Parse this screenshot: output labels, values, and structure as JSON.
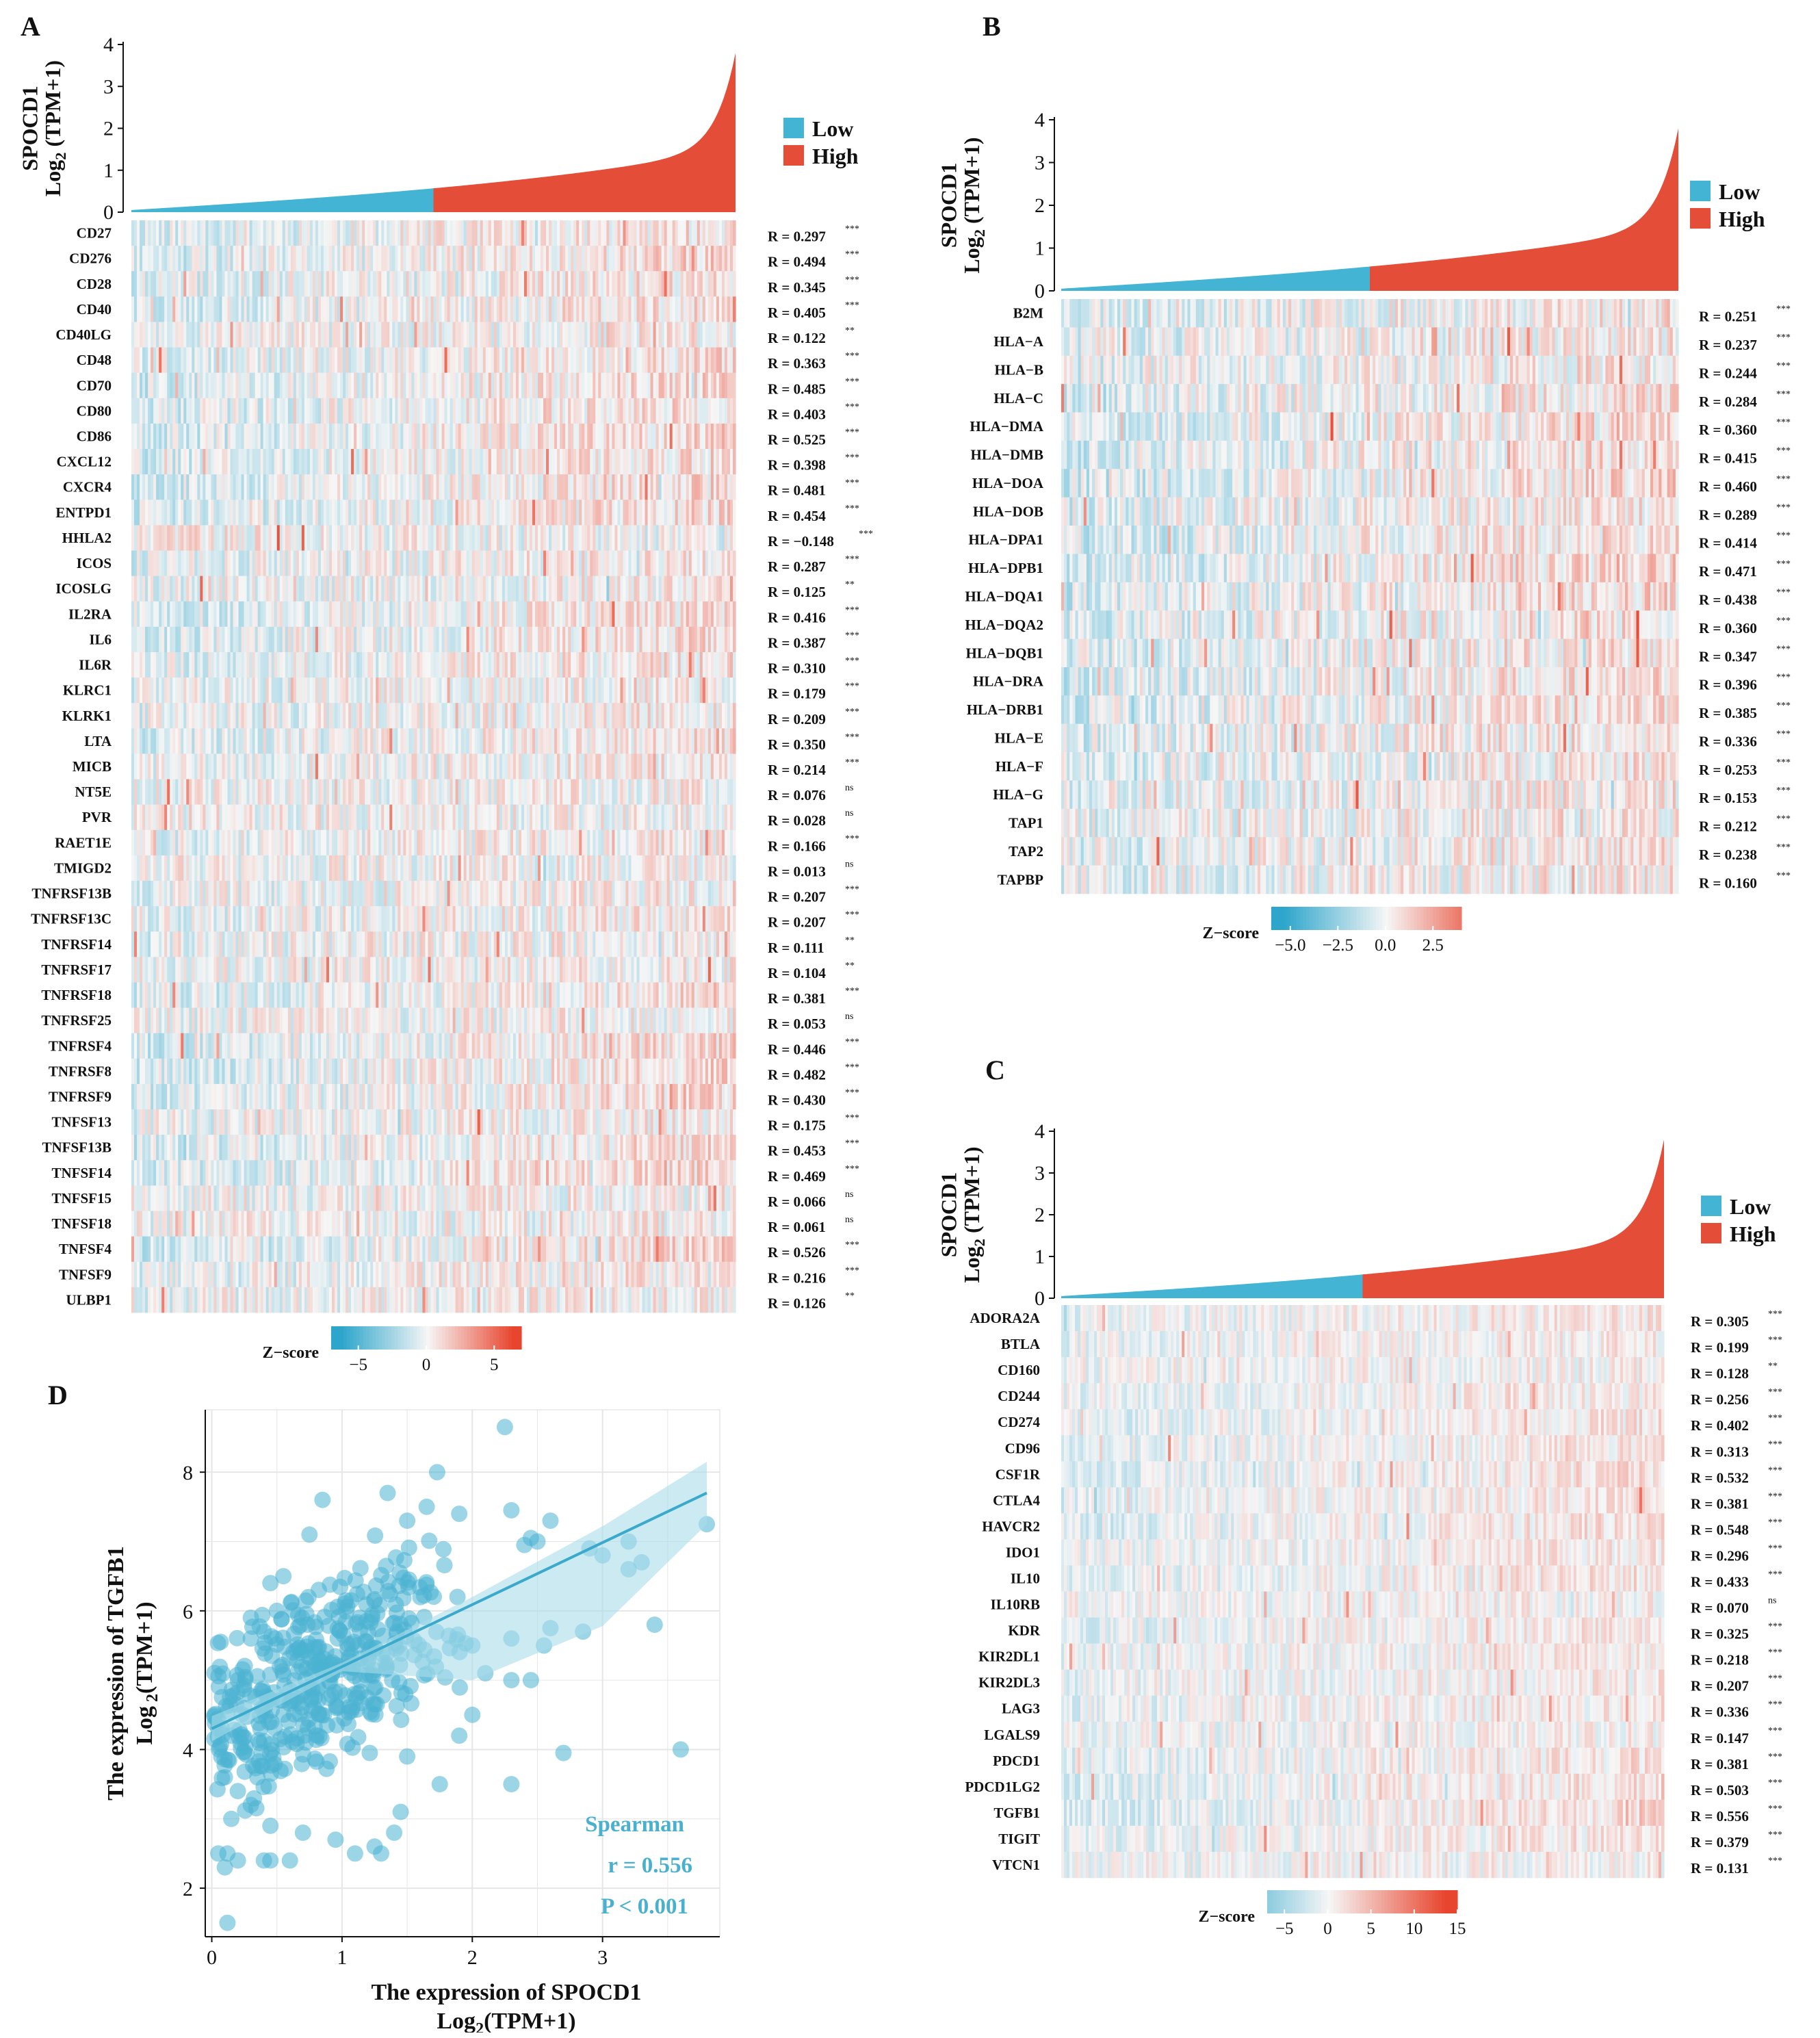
{
  "colors": {
    "low": "#44b4d4",
    "high": "#e44d38",
    "scatter": "#4ab3d1",
    "fit_band": "#a9dcea",
    "neutral": "#f4f4f4"
  },
  "legend": {
    "low": "Low",
    "high": "High"
  },
  "zscore_label": "Z−score",
  "chart_data": [
    {
      "panel": "A",
      "type": "heatmap",
      "top_ylabel_1": "SPOCD1",
      "top_ylabel_2": "Log",
      "top_ylabel_sub": "2",
      "top_ylabel_3": " (TPM+1)",
      "top_yticks": [
        "0",
        "1",
        "2",
        "3",
        "4"
      ],
      "top_ymax": 4,
      "top_curve_max": 3.8,
      "zscore_ticks": [
        "−5",
        "0",
        "5"
      ],
      "zscore_range": [
        -7,
        7
      ],
      "rows": [
        {
          "gene": "CD27",
          "r": "R = 0.297",
          "sig": "***"
        },
        {
          "gene": "CD276",
          "r": "R = 0.494",
          "sig": "***"
        },
        {
          "gene": "CD28",
          "r": "R = 0.345",
          "sig": "***"
        },
        {
          "gene": "CD40",
          "r": "R = 0.405",
          "sig": "***"
        },
        {
          "gene": "CD40LG",
          "r": "R = 0.122",
          "sig": "**"
        },
        {
          "gene": "CD48",
          "r": "R = 0.363",
          "sig": "***"
        },
        {
          "gene": "CD70",
          "r": "R = 0.485",
          "sig": "***"
        },
        {
          "gene": "CD80",
          "r": "R = 0.403",
          "sig": "***"
        },
        {
          "gene": "CD86",
          "r": "R = 0.525",
          "sig": "***"
        },
        {
          "gene": "CXCL12",
          "r": "R = 0.398",
          "sig": "***"
        },
        {
          "gene": "CXCR4",
          "r": "R = 0.481",
          "sig": "***"
        },
        {
          "gene": "ENTPD1",
          "r": "R = 0.454",
          "sig": "***"
        },
        {
          "gene": "HHLA2",
          "r": "R = −0.148",
          "sig": "***"
        },
        {
          "gene": "ICOS",
          "r": "R = 0.287",
          "sig": "***"
        },
        {
          "gene": "ICOSLG",
          "r": "R = 0.125",
          "sig": "**"
        },
        {
          "gene": "IL2RA",
          "r": "R = 0.416",
          "sig": "***"
        },
        {
          "gene": "IL6",
          "r": "R = 0.387",
          "sig": "***"
        },
        {
          "gene": "IL6R",
          "r": "R = 0.310",
          "sig": "***"
        },
        {
          "gene": "KLRC1",
          "r": "R = 0.179",
          "sig": "***"
        },
        {
          "gene": "KLRK1",
          "r": "R = 0.209",
          "sig": "***"
        },
        {
          "gene": "LTA",
          "r": "R = 0.350",
          "sig": "***"
        },
        {
          "gene": "MICB",
          "r": "R = 0.214",
          "sig": "***"
        },
        {
          "gene": "NT5E",
          "r": "R = 0.076",
          "sig": "ns"
        },
        {
          "gene": "PVR",
          "r": "R = 0.028",
          "sig": "ns"
        },
        {
          "gene": "RAET1E",
          "r": "R = 0.166",
          "sig": "***"
        },
        {
          "gene": "TMIGD2",
          "r": "R = 0.013",
          "sig": "ns"
        },
        {
          "gene": "TNFRSF13B",
          "r": "R = 0.207",
          "sig": "***"
        },
        {
          "gene": "TNFRSF13C",
          "r": "R = 0.207",
          "sig": "***"
        },
        {
          "gene": "TNFRSF14",
          "r": "R = 0.111",
          "sig": "**"
        },
        {
          "gene": "TNFRSF17",
          "r": "R = 0.104",
          "sig": "**"
        },
        {
          "gene": "TNFRSF18",
          "r": "R = 0.381",
          "sig": "***"
        },
        {
          "gene": "TNFRSF25",
          "r": "R = 0.053",
          "sig": "ns"
        },
        {
          "gene": "TNFRSF4",
          "r": "R = 0.446",
          "sig": "***"
        },
        {
          "gene": "TNFRSF8",
          "r": "R = 0.482",
          "sig": "***"
        },
        {
          "gene": "TNFRSF9",
          "r": "R = 0.430",
          "sig": "***"
        },
        {
          "gene": "TNFSF13",
          "r": "R = 0.175",
          "sig": "***"
        },
        {
          "gene": "TNFSF13B",
          "r": "R = 0.453",
          "sig": "***"
        },
        {
          "gene": "TNFSF14",
          "r": "R = 0.469",
          "sig": "***"
        },
        {
          "gene": "TNFSF15",
          "r": "R = 0.066",
          "sig": "ns"
        },
        {
          "gene": "TNFSF18",
          "r": "R = 0.061",
          "sig": "ns"
        },
        {
          "gene": "TNFSF4",
          "r": "R = 0.526",
          "sig": "***"
        },
        {
          "gene": "TNFSF9",
          "r": "R = 0.216",
          "sig": "***"
        },
        {
          "gene": "ULBP1",
          "r": "R = 0.126",
          "sig": "**"
        }
      ]
    },
    {
      "panel": "B",
      "type": "heatmap",
      "top_ylabel_1": "SPOCD1",
      "top_ylabel_2": "Log",
      "top_ylabel_sub": "2",
      "top_ylabel_3": " (TPM+1)",
      "top_yticks": [
        "0",
        "1",
        "2",
        "3",
        "4"
      ],
      "top_ymax": 4,
      "top_curve_max": 3.8,
      "zscore_ticks": [
        "−5.0",
        "−2.5",
        "0.0",
        "2.5"
      ],
      "zscore_range": [
        -6,
        4
      ],
      "rows": [
        {
          "gene": "B2M",
          "r": "R = 0.251",
          "sig": "***"
        },
        {
          "gene": "HLA−A",
          "r": "R = 0.237",
          "sig": "***"
        },
        {
          "gene": "HLA−B",
          "r": "R = 0.244",
          "sig": "***"
        },
        {
          "gene": "HLA−C",
          "r": "R = 0.284",
          "sig": "***"
        },
        {
          "gene": "HLA−DMA",
          "r": "R = 0.360",
          "sig": "***"
        },
        {
          "gene": "HLA−DMB",
          "r": "R = 0.415",
          "sig": "***"
        },
        {
          "gene": "HLA−DOA",
          "r": "R = 0.460",
          "sig": "***"
        },
        {
          "gene": "HLA−DOB",
          "r": "R = 0.289",
          "sig": "***"
        },
        {
          "gene": "HLA−DPA1",
          "r": "R = 0.414",
          "sig": "***"
        },
        {
          "gene": "HLA−DPB1",
          "r": "R = 0.471",
          "sig": "***"
        },
        {
          "gene": "HLA−DQA1",
          "r": "R = 0.438",
          "sig": "***"
        },
        {
          "gene": "HLA−DQA2",
          "r": "R = 0.360",
          "sig": "***"
        },
        {
          "gene": "HLA−DQB1",
          "r": "R = 0.347",
          "sig": "***"
        },
        {
          "gene": "HLA−DRA",
          "r": "R = 0.396",
          "sig": "***"
        },
        {
          "gene": "HLA−DRB1",
          "r": "R = 0.385",
          "sig": "***"
        },
        {
          "gene": "HLA−E",
          "r": "R = 0.336",
          "sig": "***"
        },
        {
          "gene": "HLA−F",
          "r": "R = 0.253",
          "sig": "***"
        },
        {
          "gene": "HLA−G",
          "r": "R = 0.153",
          "sig": "***"
        },
        {
          "gene": "TAP1",
          "r": "R = 0.212",
          "sig": "***"
        },
        {
          "gene": "TAP2",
          "r": "R = 0.238",
          "sig": "***"
        },
        {
          "gene": "TAPBP",
          "r": "R = 0.160",
          "sig": "***"
        }
      ]
    },
    {
      "panel": "C",
      "type": "heatmap",
      "top_ylabel_1": "SPOCD1",
      "top_ylabel_2": "Log",
      "top_ylabel_sub": "2",
      "top_ylabel_3": " (TPM+1)",
      "top_yticks": [
        "0",
        "1",
        "2",
        "3",
        "4"
      ],
      "top_ymax": 4,
      "top_curve_max": 3.8,
      "zscore_ticks": [
        "−5",
        "0",
        "5",
        "10",
        "15"
      ],
      "zscore_range": [
        -7,
        15
      ],
      "rows": [
        {
          "gene": "ADORA2A",
          "r": "R = 0.305",
          "sig": "***"
        },
        {
          "gene": "BTLA",
          "r": "R = 0.199",
          "sig": "***"
        },
        {
          "gene": "CD160",
          "r": "R = 0.128",
          "sig": "**"
        },
        {
          "gene": "CD244",
          "r": "R = 0.256",
          "sig": "***"
        },
        {
          "gene": "CD274",
          "r": "R = 0.402",
          "sig": "***"
        },
        {
          "gene": "CD96",
          "r": "R = 0.313",
          "sig": "***"
        },
        {
          "gene": "CSF1R",
          "r": "R = 0.532",
          "sig": "***"
        },
        {
          "gene": "CTLA4",
          "r": "R = 0.381",
          "sig": "***"
        },
        {
          "gene": "HAVCR2",
          "r": "R = 0.548",
          "sig": "***"
        },
        {
          "gene": "IDO1",
          "r": "R = 0.296",
          "sig": "***"
        },
        {
          "gene": "IL10",
          "r": "R = 0.433",
          "sig": "***"
        },
        {
          "gene": "IL10RB",
          "r": "R = 0.070",
          "sig": "ns"
        },
        {
          "gene": "KDR",
          "r": "R = 0.325",
          "sig": "***"
        },
        {
          "gene": "KIR2DL1",
          "r": "R = 0.218",
          "sig": "***"
        },
        {
          "gene": "KIR2DL3",
          "r": "R = 0.207",
          "sig": "***"
        },
        {
          "gene": "LAG3",
          "r": "R = 0.336",
          "sig": "***"
        },
        {
          "gene": "LGALS9",
          "r": "R = 0.147",
          "sig": "***"
        },
        {
          "gene": "PDCD1",
          "r": "R = 0.381",
          "sig": "***"
        },
        {
          "gene": "PDCD1LG2",
          "r": "R = 0.503",
          "sig": "***"
        },
        {
          "gene": "TGFB1",
          "r": "R = 0.556",
          "sig": "***"
        },
        {
          "gene": "TIGIT",
          "r": "R = 0.379",
          "sig": "***"
        },
        {
          "gene": "VTCN1",
          "r": "R = 0.131",
          "sig": "***"
        }
      ]
    },
    {
      "panel": "D",
      "type": "scatter",
      "xlabel_1": "The expression of SPOCD1",
      "xlabel_2": "Log",
      "xlabel_sub": "2",
      "xlabel_3": "(TPM+1)",
      "ylabel_1": "The expression of TGFB1",
      "ylabel_2": "Log",
      "ylabel_sub": " 2",
      "ylabel_3": "(TPM+1)",
      "xlim": [
        -0.05,
        3.9
      ],
      "ylim": [
        1.3,
        8.9
      ],
      "xticks": [
        0,
        1,
        2,
        3
      ],
      "yticks": [
        2,
        4,
        6,
        8
      ],
      "fit": {
        "x0": 0.0,
        "y0": 4.3,
        "x1": 3.8,
        "y1": 7.7
      },
      "stat_method": "Spearman",
      "stat_r": "r = 0.556",
      "stat_p": "P < 0.001",
      "points": [
        [
          0.12,
          1.5
        ],
        [
          0.05,
          2.5
        ],
        [
          0.12,
          2.5
        ],
        [
          0.1,
          2.3
        ],
        [
          0.2,
          2.4
        ],
        [
          0.4,
          2.4
        ],
        [
          0.45,
          2.4
        ],
        [
          0.6,
          2.4
        ],
        [
          0.45,
          2.9
        ],
        [
          0.7,
          2.8
        ],
        [
          0.95,
          2.7
        ],
        [
          1.1,
          2.5
        ],
        [
          1.25,
          2.6
        ],
        [
          1.4,
          2.8
        ],
        [
          1.45,
          3.1
        ],
        [
          2.3,
          3.5
        ],
        [
          2.7,
          3.95
        ],
        [
          3.6,
          4.0
        ],
        [
          3.4,
          5.8
        ],
        [
          2.25,
          8.65
        ],
        [
          1.73,
          8.0
        ],
        [
          1.35,
          7.7
        ],
        [
          1.65,
          7.5
        ],
        [
          0.85,
          7.6
        ],
        [
          0.75,
          7.1
        ],
        [
          1.5,
          7.3
        ],
        [
          1.9,
          7.4
        ],
        [
          2.3,
          7.45
        ],
        [
          2.6,
          7.3
        ],
        [
          3.2,
          7.0
        ],
        [
          3.8,
          7.25
        ],
        [
          2.85,
          5.7
        ],
        [
          2.6,
          5.75
        ],
        [
          2.55,
          5.5
        ],
        [
          2.3,
          5.6
        ],
        [
          2.9,
          6.9
        ],
        [
          3.0,
          6.8
        ],
        [
          3.2,
          6.6
        ],
        [
          3.3,
          6.7
        ],
        [
          2.45,
          7.05
        ],
        [
          2.5,
          7.0
        ],
        [
          2.4,
          6.95
        ],
        [
          2.0,
          5.5
        ],
        [
          2.1,
          5.1
        ],
        [
          2.3,
          5.0
        ],
        [
          2.45,
          5.0
        ],
        [
          1.75,
          3.5
        ],
        [
          1.5,
          3.9
        ],
        [
          1.9,
          4.2
        ],
        [
          2.0,
          4.5
        ],
        [
          1.3,
          2.5
        ],
        [
          0.15,
          3.0
        ],
        [
          0.1,
          3.6
        ],
        [
          0.2,
          3.4
        ],
        [
          0.3,
          3.2
        ],
        [
          0.35,
          3.6
        ],
        [
          0.15,
          4.2
        ],
        [
          0.05,
          4.3
        ],
        [
          0.25,
          4.6
        ],
        [
          0.2,
          5.0
        ],
        [
          0.3,
          5.6
        ],
        [
          0.4,
          5.7
        ],
        [
          0.5,
          6.0
        ],
        [
          0.45,
          6.4
        ],
        [
          0.55,
          6.5
        ],
        [
          0.3,
          5.9
        ]
      ]
    }
  ]
}
